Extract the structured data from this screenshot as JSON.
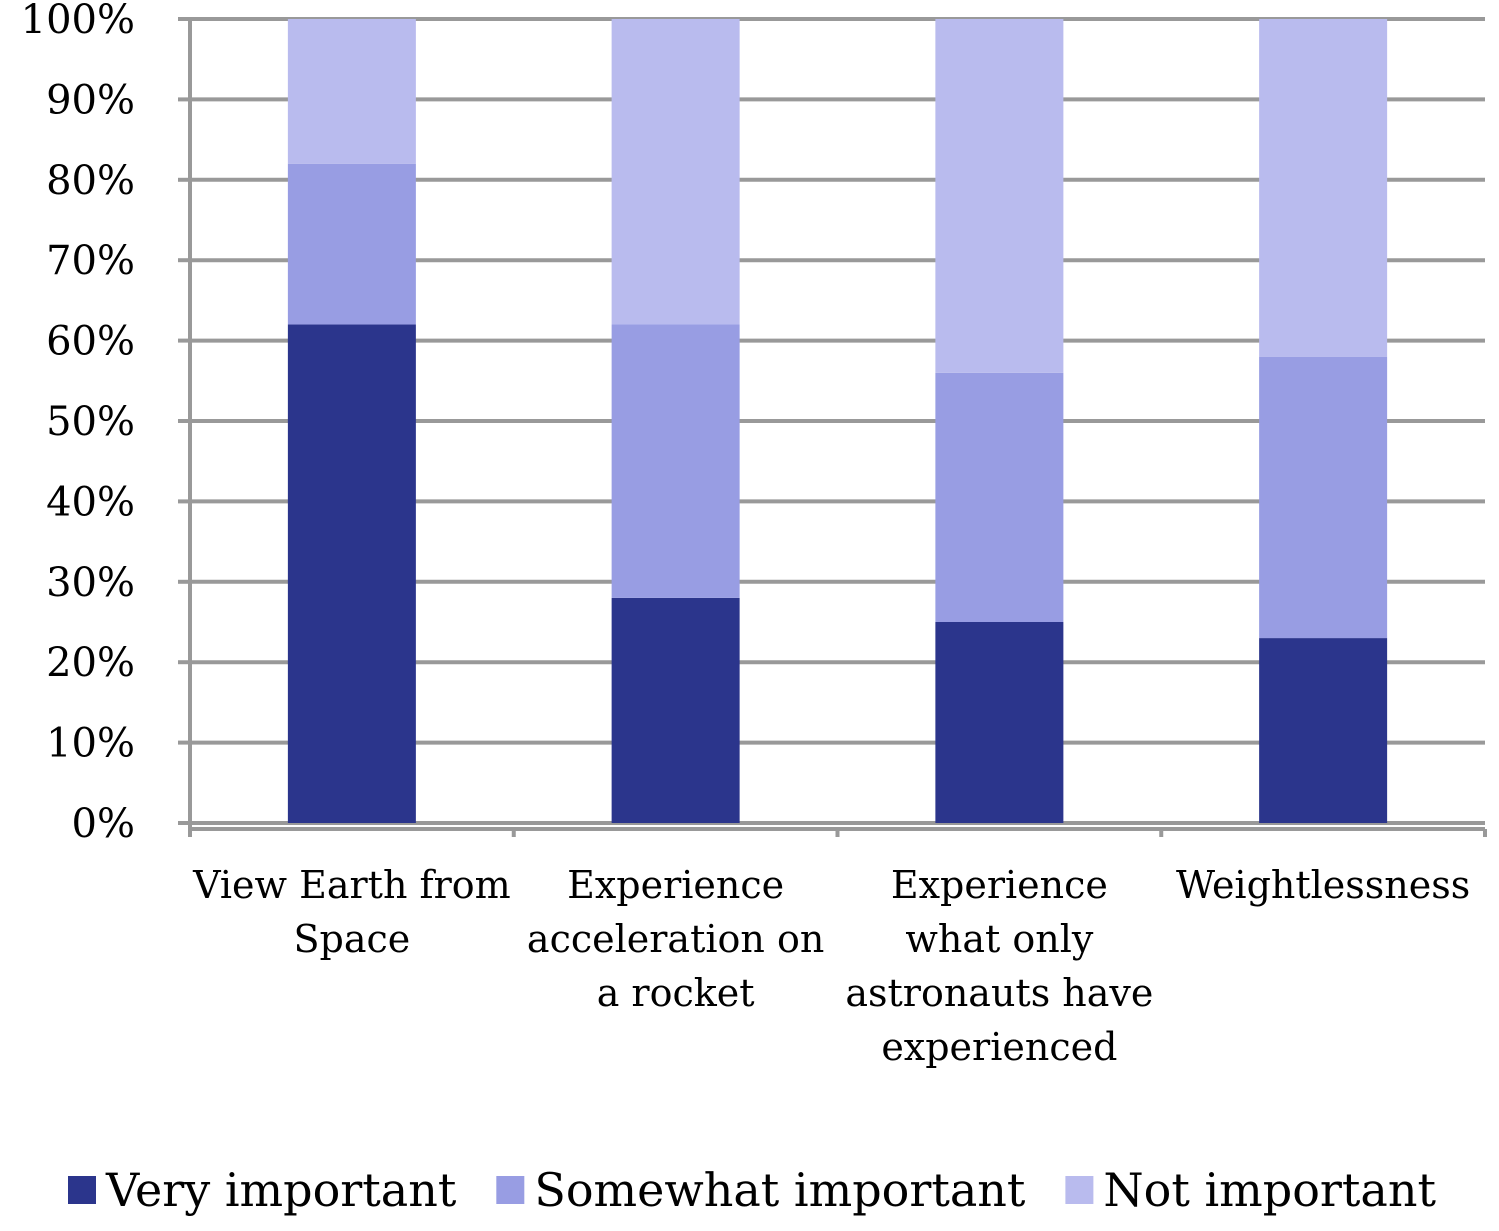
{
  "chart_data": {
    "type": "bar",
    "stacked": true,
    "categories": [
      "View Earth from Space",
      "Experience acceleration on a rocket",
      "Experience what only astronauts have experienced",
      "Weightlessness"
    ],
    "series": [
      {
        "name": "Very important",
        "color": "#2b358c",
        "values": [
          62,
          28,
          25,
          23
        ]
      },
      {
        "name": "Somewhat important",
        "color": "#989de3",
        "values": [
          20,
          34,
          31,
          35
        ]
      },
      {
        "name": "Not important",
        "color": "#b9bbee",
        "values": [
          18,
          38,
          44,
          42
        ]
      }
    ],
    "ylim": [
      0,
      100
    ],
    "yticks": [
      {
        "value": 0,
        "label": "0%"
      },
      {
        "value": 10,
        "label": "10%"
      },
      {
        "value": 20,
        "label": "20%"
      },
      {
        "value": 30,
        "label": "30%"
      },
      {
        "value": 40,
        "label": "40%"
      },
      {
        "value": 50,
        "label": "50%"
      },
      {
        "value": 60,
        "label": "60%"
      },
      {
        "value": 70,
        "label": "70%"
      },
      {
        "value": 80,
        "label": "80%"
      },
      {
        "value": 90,
        "label": "90%"
      },
      {
        "value": 100,
        "label": "100%"
      }
    ],
    "grid": true,
    "legend": "bottom"
  }
}
